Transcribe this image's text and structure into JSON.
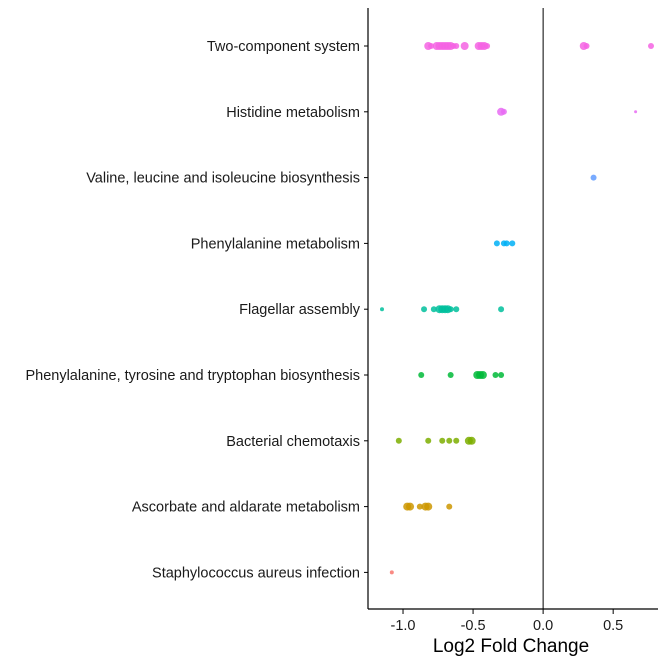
{
  "chart_data": {
    "type": "scatter",
    "title": "",
    "xlabel": "Log2 Fold Change",
    "ylabel": "",
    "xlim": [
      -1.25,
      0.82
    ],
    "x_ticks": [
      -1.0,
      -0.5,
      0.0,
      0.5
    ],
    "x_tick_labels": [
      "-1.0",
      "-0.5",
      "0.0",
      "0.5"
    ],
    "reference_line_x": 0,
    "grid": false,
    "legend": "none",
    "categories": [
      "Two-component system",
      "Histidine metabolism",
      "Valine, leucine and isoleucine biosynthesis",
      "Phenylalanine metabolism",
      "Flagellar assembly",
      "Phenylalanine, tyrosine and tryptophan biosynthesis",
      "Bacterial chemotaxis",
      "Ascorbate and aldarate metabolism",
      "Staphylococcus aureus infection"
    ],
    "series": [
      {
        "category": "Two-component system",
        "color": "#F564E3",
        "points": [
          {
            "x": -0.82,
            "size": 4
          },
          {
            "x": -0.8,
            "size": 3
          },
          {
            "x": -0.76,
            "size": 4
          },
          {
            "x": -0.74,
            "size": 4
          },
          {
            "x": -0.72,
            "size": 4
          },
          {
            "x": -0.7,
            "size": 4
          },
          {
            "x": -0.68,
            "size": 4
          },
          {
            "x": -0.66,
            "size": 4
          },
          {
            "x": -0.64,
            "size": 3
          },
          {
            "x": -0.62,
            "size": 3
          },
          {
            "x": -0.56,
            "size": 4
          },
          {
            "x": -0.46,
            "size": 4
          },
          {
            "x": -0.44,
            "size": 4
          },
          {
            "x": -0.42,
            "size": 4
          },
          {
            "x": -0.4,
            "size": 3
          },
          {
            "x": 0.29,
            "size": 4
          },
          {
            "x": 0.31,
            "size": 3
          },
          {
            "x": 0.77,
            "size": 3
          }
        ]
      },
      {
        "category": "Histidine metabolism",
        "color": "#E76BF3",
        "points": [
          {
            "x": -0.3,
            "size": 4
          },
          {
            "x": -0.28,
            "size": 3
          },
          {
            "x": 0.66,
            "size": 1.5
          }
        ]
      },
      {
        "category": "Valine, leucine and isoleucine biosynthesis",
        "color": "#619CFF",
        "points": [
          {
            "x": 0.36,
            "size": 3
          }
        ]
      },
      {
        "category": "Phenylalanine metabolism",
        "color": "#00B0F6",
        "points": [
          {
            "x": -0.33,
            "size": 3
          },
          {
            "x": -0.28,
            "size": 3
          },
          {
            "x": -0.26,
            "size": 3
          },
          {
            "x": -0.22,
            "size": 3
          }
        ]
      },
      {
        "category": "Flagellar assembly",
        "color": "#00BF9C",
        "points": [
          {
            "x": -1.15,
            "size": 2
          },
          {
            "x": -0.85,
            "size": 3
          },
          {
            "x": -0.78,
            "size": 3
          },
          {
            "x": -0.74,
            "size": 4
          },
          {
            "x": -0.72,
            "size": 4
          },
          {
            "x": -0.7,
            "size": 4
          },
          {
            "x": -0.68,
            "size": 4
          },
          {
            "x": -0.66,
            "size": 3
          },
          {
            "x": -0.62,
            "size": 3
          },
          {
            "x": -0.3,
            "size": 3
          }
        ]
      },
      {
        "category": "Phenylalanine, tyrosine and tryptophan biosynthesis",
        "color": "#00BA38",
        "points": [
          {
            "x": -0.87,
            "size": 3
          },
          {
            "x": -0.66,
            "size": 3
          },
          {
            "x": -0.47,
            "size": 4
          },
          {
            "x": -0.45,
            "size": 4
          },
          {
            "x": -0.43,
            "size": 4
          },
          {
            "x": -0.34,
            "size": 3
          },
          {
            "x": -0.3,
            "size": 3
          }
        ]
      },
      {
        "category": "Bacterial chemotaxis",
        "color": "#7CAE00",
        "points": [
          {
            "x": -1.03,
            "size": 3
          },
          {
            "x": -0.82,
            "size": 3
          },
          {
            "x": -0.72,
            "size": 3
          },
          {
            "x": -0.67,
            "size": 3
          },
          {
            "x": -0.62,
            "size": 3
          },
          {
            "x": -0.53,
            "size": 4
          },
          {
            "x": -0.51,
            "size": 4
          }
        ]
      },
      {
        "category": "Ascorbate and aldarate metabolism",
        "color": "#CD9600",
        "points": [
          {
            "x": -0.97,
            "size": 4
          },
          {
            "x": -0.95,
            "size": 4
          },
          {
            "x": -0.88,
            "size": 3
          },
          {
            "x": -0.84,
            "size": 4
          },
          {
            "x": -0.82,
            "size": 4
          },
          {
            "x": -0.67,
            "size": 3
          }
        ]
      },
      {
        "category": "Staphylococcus aureus infection",
        "color": "#F8766D",
        "points": [
          {
            "x": -1.08,
            "size": 2
          }
        ]
      }
    ]
  }
}
